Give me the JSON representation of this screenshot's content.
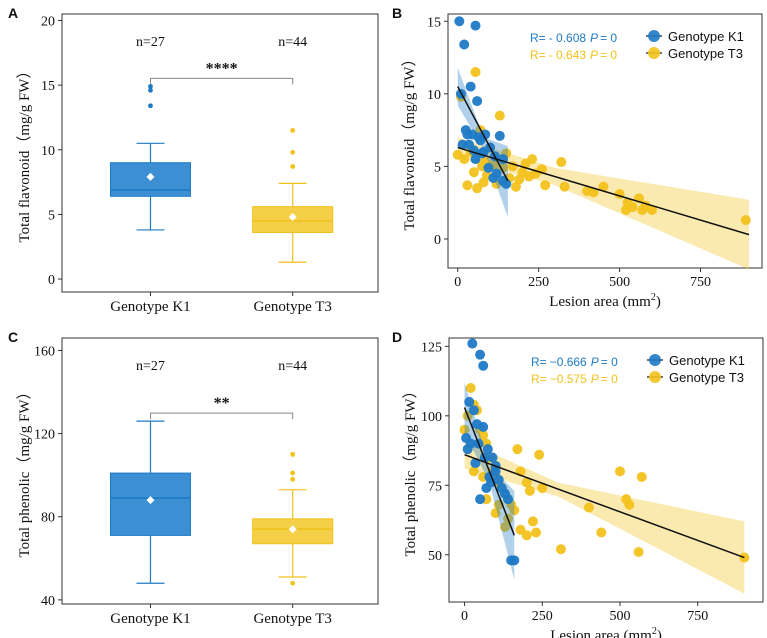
{
  "colors": {
    "k1": "#1f7ac6",
    "t3": "#f2c21c",
    "k1_fill": "#3d8fd4",
    "t3_fill": "#f5cf48",
    "frame": "#333333"
  },
  "chart_data": [
    {
      "panel": "A",
      "type": "box",
      "ylabel": "Total flavonoid（mg/g FW）",
      "ylim": [
        -1,
        20.5
      ],
      "yticks": [
        "0",
        "5",
        "10",
        "15",
        "20"
      ],
      "categories": [
        "Genotype K1",
        "Genotype T3"
      ],
      "n_labels": [
        "n=27",
        "n=44"
      ],
      "significance": "****",
      "boxes": [
        {
          "name": "Genotype K1",
          "whisker_low": 3.8,
          "q1": 6.4,
          "median": 6.9,
          "q3": 9.0,
          "whisker_high": 10.5,
          "mean": 7.9,
          "outliers": [
            13.4,
            14.6,
            14.9
          ]
        },
        {
          "name": "Genotype T3",
          "whisker_low": 1.3,
          "q1": 3.6,
          "median": 4.5,
          "q3": 5.6,
          "whisker_high": 7.4,
          "mean": 4.8,
          "outliers": [
            8.7,
            9.8,
            11.5
          ]
        }
      ]
    },
    {
      "panel": "B",
      "type": "scatter",
      "xlabel": "Lesion area (mm",
      "xlabel_sup": "2",
      "xlabel_end": ")",
      "ylabel": "Total flavonoid（mg/g FW）",
      "xlim": [
        -30,
        940
      ],
      "ylim": [
        -2,
        15.5
      ],
      "xticks": [
        "0",
        "250",
        "500",
        "750"
      ],
      "yticks": [
        "0",
        "5",
        "10",
        "15"
      ],
      "stats": [
        {
          "label": "R=",
          "r": "- 0.608",
          "p_label": "P",
          "p": "= 0"
        },
        {
          "label": "R=",
          "r": "- 0.643",
          "p_label": "P",
          "p": "= 0"
        }
      ],
      "legend": [
        "Genotype K1",
        "Genotype T3"
      ],
      "series": [
        {
          "name": "Genotype K1",
          "points": [
            [
              5,
              15
            ],
            [
              20,
              13.4
            ],
            [
              55,
              14.7
            ],
            [
              10,
              10
            ],
            [
              40,
              10.5
            ],
            [
              60,
              9.5
            ],
            [
              25,
              7.5
            ],
            [
              45,
              7.2
            ],
            [
              70,
              6.8
            ],
            [
              85,
              7.2
            ],
            [
              100,
              6.3
            ],
            [
              115,
              5.7
            ],
            [
              130,
              7.1
            ],
            [
              140,
              5.5
            ],
            [
              150,
              3.8
            ],
            [
              120,
              4.5
            ],
            [
              35,
              6.5
            ],
            [
              55,
              5.5
            ],
            [
              80,
              6.0
            ],
            [
              15,
              6.5
            ],
            [
              95,
              4.9
            ],
            [
              110,
              4.2
            ],
            [
              65,
              7.0
            ],
            [
              30,
              7.2
            ],
            [
              140,
              4.0
            ],
            [
              75,
              5.9
            ],
            [
              50,
              6.1
            ]
          ],
          "fit": {
            "x": [
              0,
              155
            ],
            "y": [
              10.5,
              4.0
            ]
          },
          "band": {
            "x": [
              0,
              80,
              155
            ],
            "upper": [
              11.8,
              7.0,
              6.4
            ],
            "lower": [
              9.2,
              6.2,
              1.5
            ]
          }
        },
        {
          "name": "Genotype T3",
          "points": [
            [
              0,
              5.8
            ],
            [
              10,
              9.8
            ],
            [
              20,
              5.5
            ],
            [
              30,
              3.7
            ],
            [
              40,
              6.0
            ],
            [
              50,
              4.6
            ],
            [
              55,
              11.5
            ],
            [
              60,
              3.5
            ],
            [
              70,
              7.5
            ],
            [
              75,
              5.0
            ],
            [
              80,
              3.9
            ],
            [
              90,
              4.4
            ],
            [
              100,
              6.3
            ],
            [
              110,
              5.1
            ],
            [
              120,
              3.8
            ],
            [
              130,
              8.5
            ],
            [
              140,
              4.9
            ],
            [
              150,
              5.9
            ],
            [
              160,
              4.2
            ],
            [
              170,
              5.0
            ],
            [
              180,
              3.6
            ],
            [
              190,
              4.1
            ],
            [
              200,
              4.6
            ],
            [
              210,
              5.2
            ],
            [
              220,
              4.3
            ],
            [
              230,
              5.5
            ],
            [
              240,
              4.5
            ],
            [
              260,
              4.8
            ],
            [
              270,
              3.7
            ],
            [
              320,
              5.3
            ],
            [
              330,
              3.6
            ],
            [
              400,
              3.3
            ],
            [
              420,
              3.2
            ],
            [
              450,
              3.6
            ],
            [
              500,
              3.1
            ],
            [
              520,
              2.0
            ],
            [
              525,
              2.5
            ],
            [
              540,
              2.2
            ],
            [
              560,
              2.8
            ],
            [
              570,
              2.0
            ],
            [
              580,
              2.3
            ],
            [
              600,
              2.0
            ],
            [
              890,
              1.3
            ],
            [
              85,
              5.3
            ]
          ],
          "fit": {
            "x": [
              0,
              900
            ],
            "y": [
              6.3,
              0.3
            ]
          },
          "band": {
            "x": [
              0,
              300,
              900
            ],
            "upper": [
              7.0,
              4.9,
              2.7
            ],
            "lower": [
              5.6,
              3.7,
              -2.1
            ]
          }
        }
      ]
    },
    {
      "panel": "C",
      "type": "box",
      "ylabel": "Total phenolic（mg/g FW）",
      "ylim": [
        38,
        166
      ],
      "yticks": [
        "40",
        "80",
        "120",
        "160"
      ],
      "categories": [
        "Genotype K1",
        "Genotype T3"
      ],
      "n_labels": [
        "n=27",
        "n=44"
      ],
      "significance": "**",
      "boxes": [
        {
          "name": "Genotype K1",
          "whisker_low": 48,
          "q1": 71,
          "median": 89,
          "q3": 101,
          "whisker_high": 126,
          "mean": 88,
          "outliers": []
        },
        {
          "name": "Genotype T3",
          "whisker_low": 51,
          "q1": 67,
          "median": 74,
          "q3": 79,
          "whisker_high": 93,
          "mean": 74,
          "outliers": [
            48,
            98,
            101,
            110
          ]
        }
      ]
    },
    {
      "panel": "D",
      "type": "scatter",
      "xlabel": "Lesion area (mm",
      "xlabel_sup": "2",
      "xlabel_end": ")",
      "ylabel": "Total phenolic（mg/g FW）",
      "xlim": [
        -50,
        960
      ],
      "ylim": [
        33,
        128
      ],
      "xticks": [
        "0",
        "250",
        "500",
        "750"
      ],
      "yticks": [
        "50",
        "75",
        "100",
        "125"
      ],
      "stats": [
        {
          "label": "R=",
          "r": "−0.666",
          "p_label": "P",
          "p": "= 0"
        },
        {
          "label": "R=",
          "r": "−0.575",
          "p_label": "P",
          "p": "= 0"
        }
      ],
      "legend": [
        "Genotype K1",
        "Genotype T3"
      ],
      "series": [
        {
          "name": "Genotype K1",
          "points": [
            [
              25,
              126
            ],
            [
              50,
              122
            ],
            [
              60,
              118
            ],
            [
              15,
              105
            ],
            [
              30,
              102
            ],
            [
              5,
              92
            ],
            [
              20,
              90
            ],
            [
              40,
              97
            ],
            [
              60,
              96
            ],
            [
              75,
              88
            ],
            [
              90,
              85
            ],
            [
              100,
              80
            ],
            [
              110,
              77
            ],
            [
              120,
              74
            ],
            [
              130,
              72
            ],
            [
              140,
              70
            ],
            [
              150,
              48
            ],
            [
              160,
              48
            ],
            [
              50,
              70
            ],
            [
              70,
              74
            ],
            [
              80,
              78
            ],
            [
              100,
              82
            ],
            [
              35,
              83
            ],
            [
              45,
              90
            ],
            [
              85,
              76
            ],
            [
              10,
              88
            ],
            [
              65,
              85
            ]
          ],
          "fit": {
            "x": [
              0,
              160
            ],
            "y": [
              103,
              57
            ]
          },
          "band": {
            "x": [
              0,
              80,
              160
            ],
            "upper": [
              112,
              82,
              73
            ],
            "lower": [
              94,
              76,
              41
            ]
          }
        },
        {
          "name": "Genotype T3",
          "points": [
            [
              0,
              95
            ],
            [
              10,
              100
            ],
            [
              20,
              110
            ],
            [
              30,
              104
            ],
            [
              40,
              102
            ],
            [
              50,
              95
            ],
            [
              60,
              93
            ],
            [
              70,
              90
            ],
            [
              80,
              85
            ],
            [
              90,
              80
            ],
            [
              100,
              78
            ],
            [
              110,
              76
            ],
            [
              120,
              74
            ],
            [
              130,
              72
            ],
            [
              140,
              70
            ],
            [
              150,
              68
            ],
            [
              160,
              66
            ],
            [
              170,
              88
            ],
            [
              180,
              80
            ],
            [
              200,
              76
            ],
            [
              210,
              73
            ],
            [
              220,
              62
            ],
            [
              230,
              58
            ],
            [
              240,
              86
            ],
            [
              250,
              74
            ],
            [
              310,
              52
            ],
            [
              400,
              67
            ],
            [
              440,
              58
            ],
            [
              500,
              80
            ],
            [
              520,
              70
            ],
            [
              530,
              68
            ],
            [
              560,
              51
            ],
            [
              570,
              78
            ],
            [
              900,
              49
            ],
            [
              30,
              80
            ],
            [
              60,
              78
            ],
            [
              70,
              70
            ],
            [
              100,
              65
            ],
            [
              110,
              68
            ],
            [
              130,
              60
            ],
            [
              140,
              63
            ],
            [
              180,
              59
            ],
            [
              200,
              57
            ],
            [
              90,
              77
            ]
          ],
          "fit": {
            "x": [
              0,
              900
            ],
            "y": [
              86,
              49
            ]
          },
          "band": {
            "x": [
              0,
              300,
              900
            ],
            "upper": [
              91,
              76,
              62
            ],
            "lower": [
              81,
              71,
              36
            ]
          }
        }
      ]
    }
  ]
}
